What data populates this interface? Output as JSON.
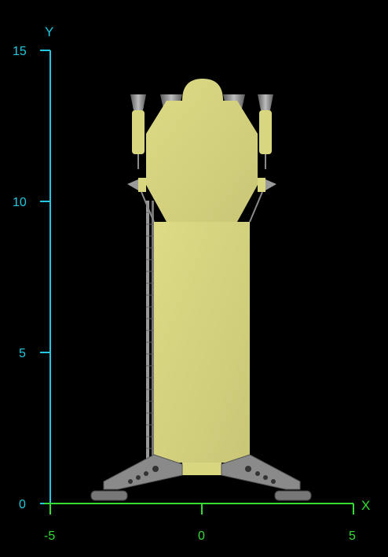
{
  "axes": {
    "x_label": "X",
    "y_label": "Y",
    "x_range": [
      -5,
      5
    ],
    "y_range": [
      0,
      15
    ],
    "x_ticks": [
      "-5",
      "0",
      "5"
    ],
    "y_ticks": [
      "0",
      "5",
      "10",
      "15"
    ],
    "x_axis_color": "#33dd33",
    "y_axis_color": "#22c8e0"
  },
  "figure": {
    "subject": "launch-vehicle-side-view",
    "body_color": "#d9d680",
    "structure_color": "#8a8a8a"
  }
}
